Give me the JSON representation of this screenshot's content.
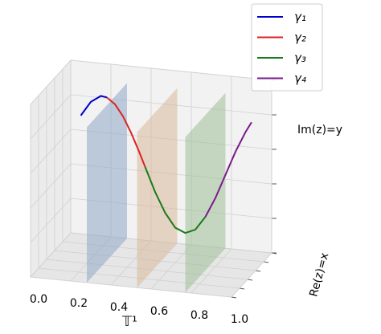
{
  "chart_data": {
    "type": "line3d",
    "xlabel": "𝕋¹",
    "ylabel": "Im(z)=y",
    "zlabel": "Re(z)=x",
    "xlim": [
      0,
      1
    ],
    "ylim": [
      -1,
      1
    ],
    "xticks": [
      {
        "value": 0,
        "label": "0.0"
      },
      0.2,
      0.4,
      0.6,
      0.8,
      {
        "value": 1,
        "label": "1.0"
      }
    ],
    "grid": true,
    "legend": "upper right",
    "planes": [
      {
        "x": 0.28,
        "color": "#8fa8c8"
      },
      {
        "x": 0.53,
        "color": "#d9b89a"
      },
      {
        "x": 0.77,
        "color": "#9fbf98"
      }
    ],
    "series": [
      {
        "name": "γ₁",
        "color": "#0000cc",
        "x": [
          0.15,
          0.2,
          0.25,
          0.28
        ],
        "values": [
          0.65,
          0.82,
          0.9,
          0.89
        ]
      },
      {
        "name": "γ₂",
        "color": "#dd2222",
        "x": [
          0.28,
          0.32,
          0.36,
          0.4,
          0.44,
          0.47
        ],
        "values": [
          0.89,
          0.82,
          0.69,
          0.51,
          0.3,
          0.13
        ]
      },
      {
        "name": "γ₃",
        "color": "#1a7a1a",
        "x": [
          0.47,
          0.52,
          0.57,
          0.62,
          0.67,
          0.72,
          0.77
        ],
        "values": [
          0.13,
          -0.15,
          -0.38,
          -0.54,
          -0.59,
          -0.54,
          -0.38
        ]
      },
      {
        "name": "γ₄",
        "color": "#7a1a8a",
        "x": [
          0.77,
          0.82,
          0.87,
          0.92,
          0.97,
          1.0
        ],
        "values": [
          -0.38,
          -0.15,
          0.13,
          0.41,
          0.65,
          0.77
        ]
      }
    ]
  }
}
